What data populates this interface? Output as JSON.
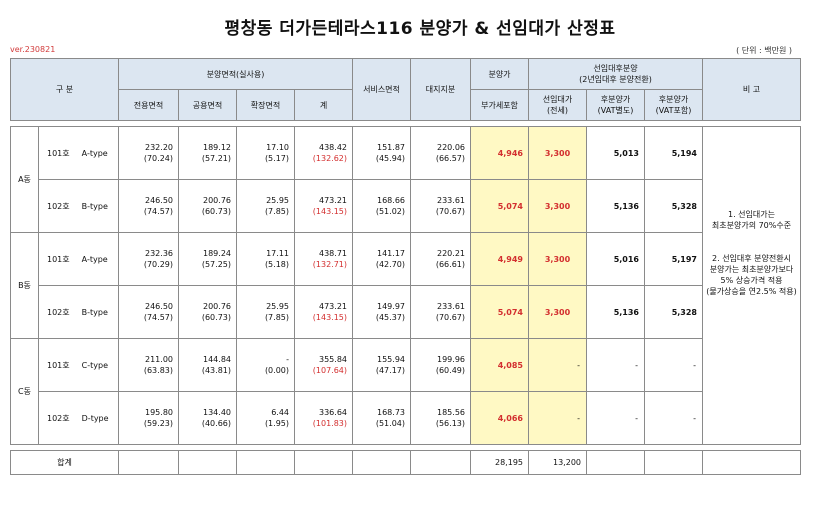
{
  "title": "평창동 더가든테라스116 분양가 & 선임대가 산정표",
  "version": "ver.230821",
  "unit": "( 단위 : 백만원 )",
  "header": {
    "gubun": "구      분",
    "area_group": "분양면적(실사용)",
    "exclusive": "전용면적",
    "common": "공용면적",
    "expansion": "확장면적",
    "total": "계",
    "service": "서비스면적",
    "land": "대지지분",
    "sale_price": "분양가",
    "vat_incl": "부가세포함",
    "prelease_group_line1": "선임대후분양",
    "prelease_group_line2": "(2년임대후 분양전환)",
    "prelease_line1": "선임대가",
    "prelease_line2": "(전세)",
    "post_sale_ex_line1": "후분양가",
    "post_sale_ex_line2": "(VAT별도)",
    "post_sale_in_line1": "후분양가",
    "post_sale_in_line2": "(VAT포함)",
    "remarks": "비      고"
  },
  "buildings": [
    {
      "name": "A동",
      "units": [
        {
          "unit": "101호",
          "type": "A-type",
          "exclusive": "232.20",
          "exclusive_sub": "(70.24)",
          "common": "189.12",
          "common_sub": "(57.21)",
          "expansion": "17.10",
          "expansion_sub": "(5.17)",
          "total": "438.42",
          "total_sub": "(132.62)",
          "service": "151.87",
          "service_sub": "(45.94)",
          "land": "220.06",
          "land_sub": "(66.57)",
          "sale_price": "4,946",
          "prelease": "3,300",
          "post_ex": "5,013",
          "post_in": "5,194"
        },
        {
          "unit": "102호",
          "type": "B-type",
          "exclusive": "246.50",
          "exclusive_sub": "(74.57)",
          "common": "200.76",
          "common_sub": "(60.73)",
          "expansion": "25.95",
          "expansion_sub": "(7.85)",
          "total": "473.21",
          "total_sub": "(143.15)",
          "service": "168.66",
          "service_sub": "(51.02)",
          "land": "233.61",
          "land_sub": "(70.67)",
          "sale_price": "5,074",
          "prelease": "3,300",
          "post_ex": "5,136",
          "post_in": "5,328"
        }
      ]
    },
    {
      "name": "B동",
      "units": [
        {
          "unit": "101호",
          "type": "A-type",
          "exclusive": "232.36",
          "exclusive_sub": "(70.29)",
          "common": "189.24",
          "common_sub": "(57.25)",
          "expansion": "17.11",
          "expansion_sub": "(5.18)",
          "total": "438.71",
          "total_sub": "(132.71)",
          "service": "141.17",
          "service_sub": "(42.70)",
          "land": "220.21",
          "land_sub": "(66.61)",
          "sale_price": "4,949",
          "prelease": "3,300",
          "post_ex": "5,016",
          "post_in": "5,197"
        },
        {
          "unit": "102호",
          "type": "B-type",
          "exclusive": "246.50",
          "exclusive_sub": "(74.57)",
          "common": "200.76",
          "common_sub": "(60.73)",
          "expansion": "25.95",
          "expansion_sub": "(7.85)",
          "total": "473.21",
          "total_sub": "(143.15)",
          "service": "149.97",
          "service_sub": "(45.37)",
          "land": "233.61",
          "land_sub": "(70.67)",
          "sale_price": "5,074",
          "prelease": "3,300",
          "post_ex": "5,136",
          "post_in": "5,328"
        }
      ]
    },
    {
      "name": "C동",
      "units": [
        {
          "unit": "101호",
          "type": "C-type",
          "exclusive": "211.00",
          "exclusive_sub": "(63.83)",
          "common": "144.84",
          "common_sub": "(43.81)",
          "expansion": "-",
          "expansion_sub": "(0.00)",
          "total": "355.84",
          "total_sub": "(107.64)",
          "service": "155.94",
          "service_sub": "(47.17)",
          "land": "199.96",
          "land_sub": "(60.49)",
          "sale_price": "4,085",
          "prelease": "-",
          "post_ex": "-",
          "post_in": "-"
        },
        {
          "unit": "102호",
          "type": "D-type",
          "exclusive": "195.80",
          "exclusive_sub": "(59.23)",
          "common": "134.40",
          "common_sub": "(40.66)",
          "expansion": "6.44",
          "expansion_sub": "(1.95)",
          "total": "336.64",
          "total_sub": "(101.83)",
          "service": "168.73",
          "service_sub": "(51.04)",
          "land": "185.56",
          "land_sub": "(56.13)",
          "sale_price": "4,066",
          "prelease": "-",
          "post_ex": "-",
          "post_in": "-"
        }
      ]
    }
  ],
  "remarks": {
    "note1_line1": "1. 선임대가는",
    "note1_line2": "최초분양가의 70%수준",
    "note2_line1": "2. 선임대후 분양전환시",
    "note2_line2": "분양가는 최초분양가보다",
    "note2_line3": "5% 상승가격 적용",
    "note2_line4": "(물가상승을 연2.5% 적용)"
  },
  "totals": {
    "label": "합계",
    "sale_price": "28,195",
    "prelease": "13,200"
  }
}
